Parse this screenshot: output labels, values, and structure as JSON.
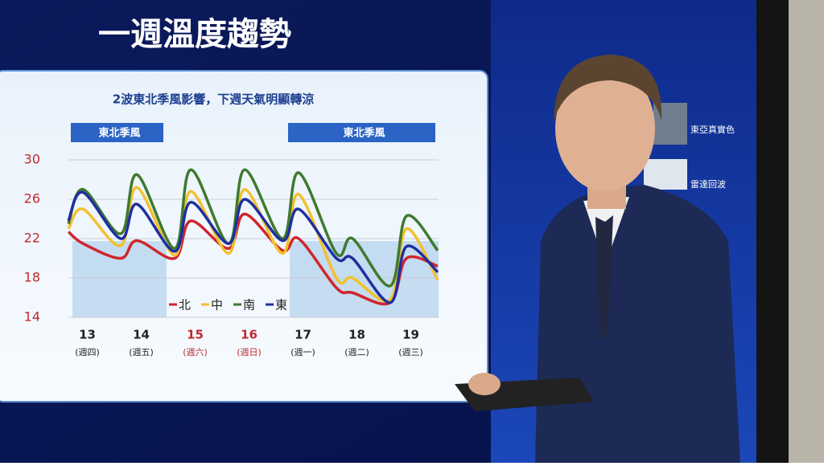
{
  "page_title": "一週溫度趨勢",
  "side_labels": [
    "東亞真實色",
    "雷達回波"
  ],
  "chart_data": {
    "type": "line",
    "title": "2波東北季風影響，下週天氣明顯轉涼",
    "annotations": [
      "東北季風",
      "東北季風"
    ],
    "categories": [
      "13",
      "14",
      "15",
      "16",
      "17",
      "18",
      "19"
    ],
    "category_sublabels": [
      "(週四)",
      "(週五)",
      "(週六)",
      "(週日)",
      "(週一)",
      "(週二)",
      "(週三)"
    ],
    "category_colors": [
      "#222222",
      "#222222",
      "#c0282d",
      "#c0282d",
      "#222222",
      "#222222",
      "#222222"
    ],
    "x": [
      0.15,
      0.42,
      1.12,
      1.42,
      2.12,
      2.42,
      3.12,
      3.42,
      4.12,
      4.42,
      5.12,
      5.42,
      6.12,
      6.42,
      7.0
    ],
    "xlim": [
      0,
      7
    ],
    "ylim": [
      14,
      30
    ],
    "yticks": [
      14,
      18,
      22,
      26,
      30
    ],
    "ytick_color": "#c0282d",
    "grid": true,
    "series": [
      {
        "name": "北",
        "color": "#d0262c",
        "values": [
          22.7,
          21.5,
          20,
          21.8,
          20,
          23.8,
          21,
          24.5,
          20.8,
          22,
          17,
          16.5,
          15.5,
          20,
          19.2
        ]
      },
      {
        "name": "中",
        "color": "#f2c12e",
        "values": [
          23,
          25,
          21.3,
          27.2,
          20.3,
          26.8,
          20.5,
          27,
          20.5,
          26.5,
          18,
          18,
          15.8,
          23,
          17.8
        ]
      },
      {
        "name": "南",
        "color": "#3f7a2e",
        "values": [
          23.5,
          27,
          22.5,
          28.5,
          21,
          29,
          21.5,
          29,
          22,
          28.7,
          20.5,
          22,
          17.2,
          24.3,
          20.8
        ]
      },
      {
        "name": "東",
        "color": "#1f2fa0",
        "values": [
          23.8,
          26.7,
          22,
          25.5,
          20.7,
          25.7,
          21.5,
          26,
          21.8,
          25,
          20,
          20,
          15.5,
          21.2,
          18.6
        ]
      }
    ]
  }
}
